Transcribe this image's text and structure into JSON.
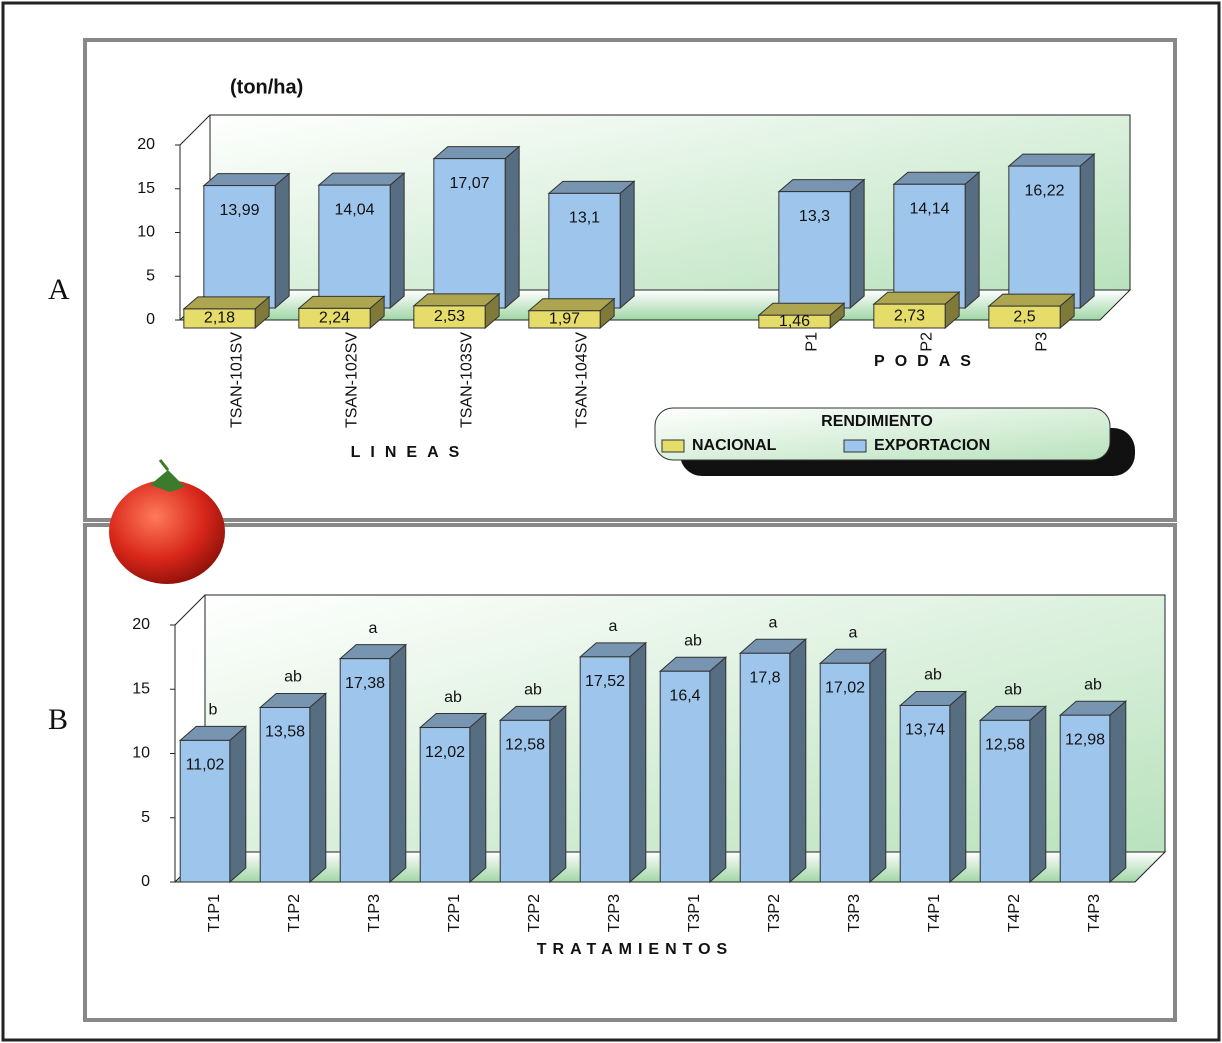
{
  "panel_labels": [
    "A",
    "B"
  ],
  "chart_data": [
    {
      "type": "bar3d",
      "y_label": "(ton/ha)",
      "categories": [
        "TSAN-101SV",
        "TSAN-102SV",
        "TSAN-103SV",
        "TSAN-104SV",
        null,
        "P1",
        "P2",
        "P3"
      ],
      "group_labels": [
        "LINEAS",
        "PODAS"
      ],
      "legend_title": "RENDIMIENTO",
      "series": [
        {
          "name": "NACIONAL",
          "color": "#e6dc6a",
          "values": [
            2.18,
            2.24,
            2.53,
            1.97,
            null,
            1.46,
            2.73,
            2.5
          ],
          "value_labels": [
            "2,18",
            "2,24",
            "2,53",
            "1,97",
            null,
            "1,46",
            "2,73",
            "2,5"
          ]
        },
        {
          "name": "EXPORTACION",
          "color": "#9ec6ec",
          "values": [
            13.99,
            14.04,
            17.07,
            13.1,
            null,
            13.3,
            14.14,
            16.22
          ],
          "value_labels": [
            "13,99",
            "14,04",
            "17,07",
            "13,1",
            null,
            "13,3",
            "14,14",
            "16,22"
          ]
        }
      ],
      "ylim": [
        0,
        20
      ],
      "yticks": [
        0,
        5,
        10,
        15,
        20
      ]
    },
    {
      "type": "bar3d",
      "x_label": "TRATAMIENTOS",
      "categories": [
        "T1P1",
        "T1P2",
        "T1P3",
        "T2P1",
        "T2P2",
        "T2P3",
        "T3P1",
        "T3P2",
        "T3P3",
        "T4P1",
        "T4P2",
        "T4P3"
      ],
      "series": [
        {
          "color": "#9ec6ec",
          "values": [
            11.02,
            13.58,
            17.38,
            12.02,
            12.58,
            17.52,
            16.4,
            17.8,
            17.02,
            13.74,
            12.58,
            12.98
          ],
          "value_labels": [
            "11,02",
            "13,58",
            "17,38",
            "12,02",
            "12,58",
            "17,52",
            "16,4",
            "17,8",
            "17,02",
            "13,74",
            "12,58",
            "12,98"
          ],
          "annotations": [
            "b",
            "ab",
            "a",
            "ab",
            "ab",
            "a",
            "ab",
            "a",
            "a",
            "ab",
            "ab",
            "ab"
          ]
        }
      ],
      "ylim": [
        0,
        20
      ],
      "yticks": [
        0,
        5,
        10,
        15,
        20
      ]
    }
  ]
}
